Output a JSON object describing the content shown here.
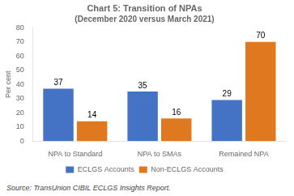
{
  "chart_data": {
    "type": "bar",
    "title": "Chart 5: Transition of NPAs",
    "subtitle": "(December 2020 versus March 2021)",
    "categories": [
      "NPA to Standard",
      "NPA to SMAs",
      "Remained NPA"
    ],
    "series": [
      {
        "name": "ECLGS Accounts",
        "color": "#4472C4",
        "values": [
          37,
          35,
          29
        ]
      },
      {
        "name": "Non-ECLGS Accounts",
        "color": "#E07820",
        "values": [
          14,
          16,
          70
        ]
      }
    ],
    "ylabel": "Per cent",
    "ylim": [
      0,
      80
    ],
    "yticks": [
      0,
      10,
      20,
      30,
      40,
      50,
      60,
      70,
      80
    ],
    "grid": false,
    "legend": "bottom",
    "data_labels": true,
    "annotations": [
      "Source: TransUnion CIBIL ECLGS Insights Report."
    ]
  }
}
